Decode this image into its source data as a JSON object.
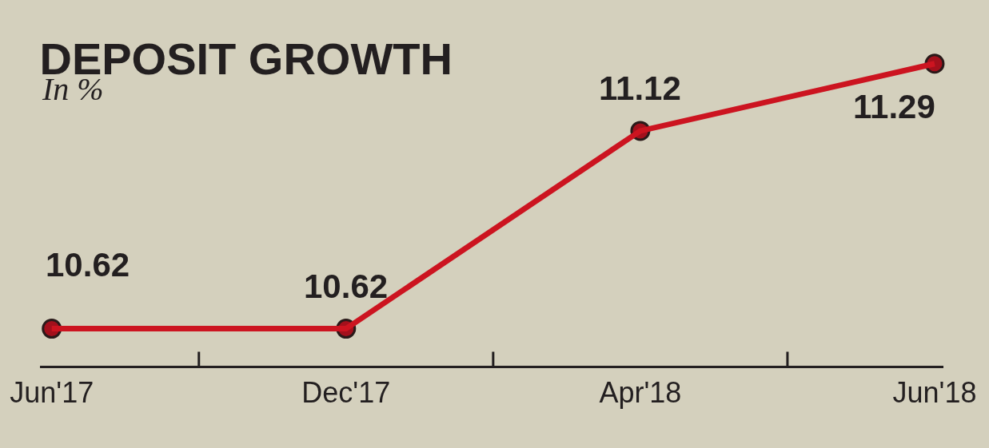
{
  "chart_data": {
    "type": "line",
    "title": "DEPOSIT GROWTH",
    "subtitle": "In %",
    "categories": [
      "Jun'17",
      "Dec'17",
      "Apr'18",
      "Jun'18"
    ],
    "values": [
      10.62,
      10.62,
      11.12,
      11.29
    ],
    "color": "#cc1420",
    "marker": "circle",
    "line_style": "solid",
    "data_labels": true,
    "tick_labels": "x"
  }
}
